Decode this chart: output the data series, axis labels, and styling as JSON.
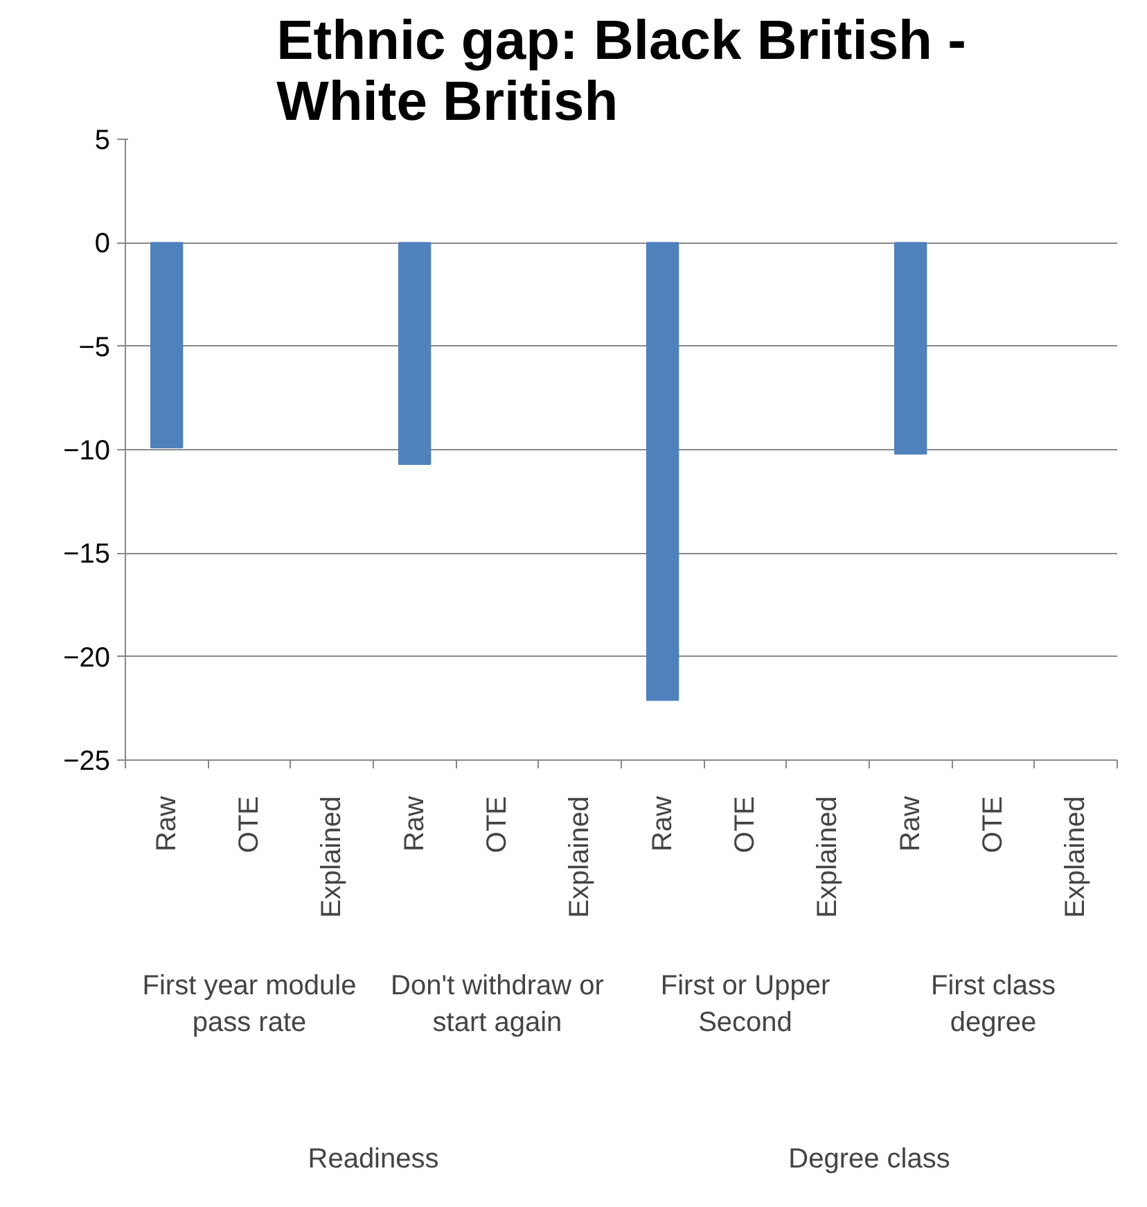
{
  "chart_data": {
    "type": "bar",
    "title": "Ethnic gap: Black British - White British",
    "categories": [
      "Raw",
      "OTE",
      "Explained",
      "Raw",
      "OTE",
      "Explained",
      "Raw",
      "OTE",
      "Explained",
      "Raw",
      "OTE",
      "Explained"
    ],
    "values": [
      -9.9,
      null,
      null,
      -10.7,
      null,
      null,
      -22.1,
      null,
      null,
      -10.2,
      null,
      null
    ],
    "color": "#4f81bd",
    "ylim": [
      -25,
      5
    ],
    "yticks": [
      -25,
      -20,
      -15,
      -10,
      -5,
      0,
      5
    ],
    "grid": "y",
    "annotations": [
      "First year module pass rate",
      "Don't withdraw or start again",
      "First or Upper Second",
      "First class degree",
      "Readiness",
      "Degree class"
    ]
  }
}
